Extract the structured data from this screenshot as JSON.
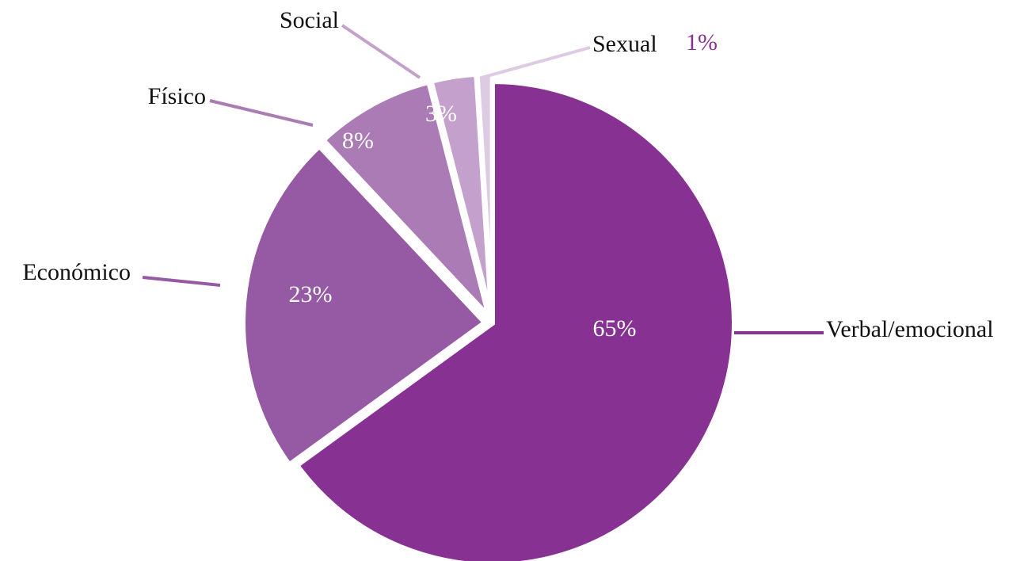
{
  "chart_data": {
    "type": "pie",
    "categories": [
      "Verbal/emocional",
      "Económico",
      "Físico",
      "Social",
      "Sexual"
    ],
    "values": [
      65,
      23,
      8,
      3,
      1
    ],
    "value_labels": [
      "65%",
      "23%",
      "8%",
      "3%",
      "1%"
    ],
    "colors": [
      "#873293",
      "#9659a3",
      "#ab7bb5",
      "#c4a0cc",
      "#dccbe3"
    ]
  }
}
